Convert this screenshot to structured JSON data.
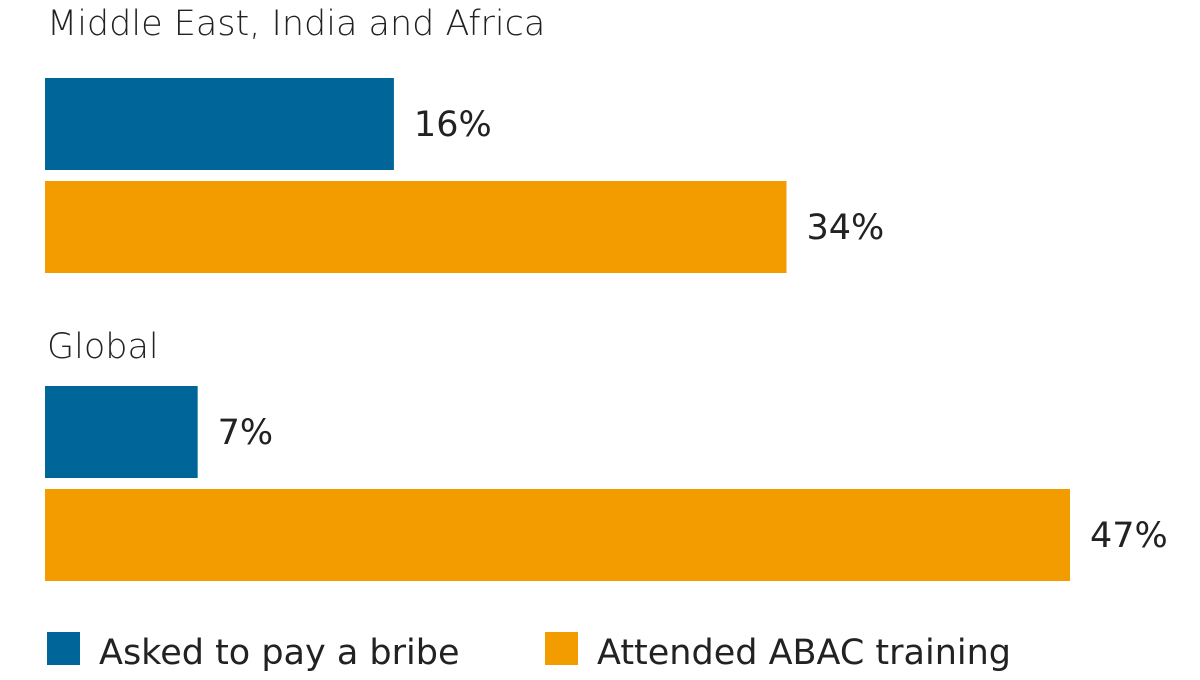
{
  "chart_data": {
    "type": "bar",
    "orientation": "horizontal",
    "categories": [
      "Middle East, India and Africa",
      "Global"
    ],
    "series": [
      {
        "name": "Asked to pay a bribe",
        "values": [
          16,
          7
        ],
        "labels": [
          "16%",
          "7%"
        ],
        "color": "#006699"
      },
      {
        "name": "Attended ABAC training",
        "values": [
          34,
          47
        ],
        "labels": [
          "34%",
          "47%"
        ],
        "color": "#F39C00"
      }
    ],
    "value_unit": "%",
    "xlim": [
      0,
      47
    ],
    "grid": false,
    "legend_position": "bottom"
  }
}
